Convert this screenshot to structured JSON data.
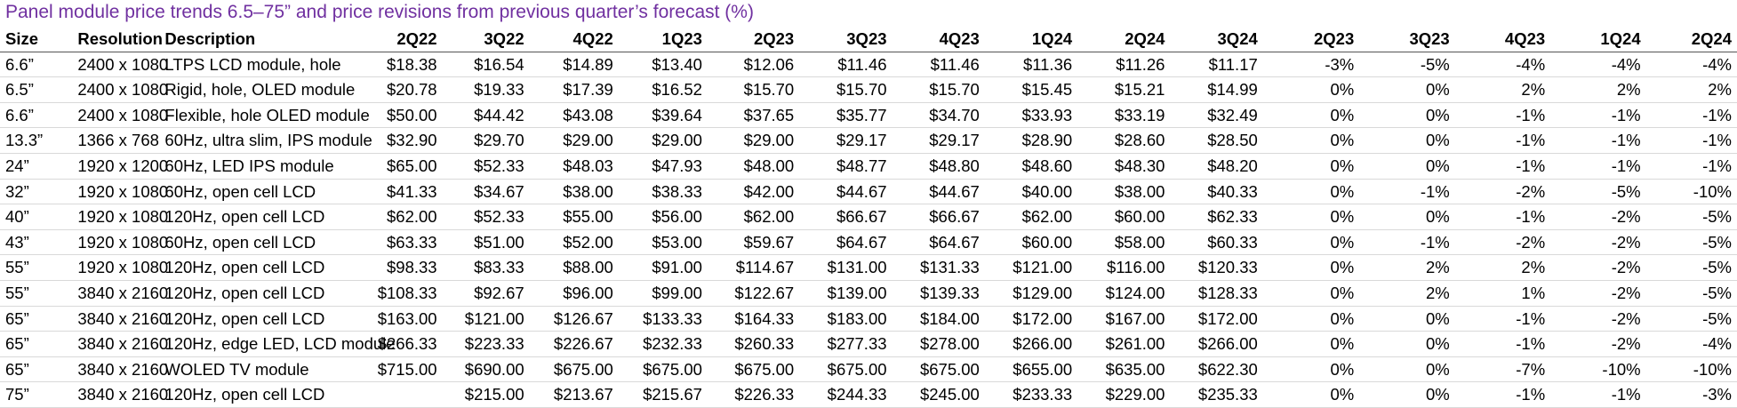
{
  "title": "Panel module price trends 6.5–75” and price revisions from previous quarter’s forecast (%)",
  "columns": [
    "Size",
    "Resolution",
    "Description",
    "2Q22",
    "3Q22",
    "4Q22",
    "1Q23",
    "2Q23",
    "3Q23",
    "4Q23",
    "1Q24",
    "2Q24",
    "3Q24",
    "2Q23",
    "3Q23",
    "4Q23",
    "1Q24",
    "2Q24"
  ],
  "rows": [
    [
      "6.6”",
      "2400 x 1080",
      "LTPS LCD module, hole",
      "$18.38",
      "$16.54",
      "$14.89",
      "$13.40",
      "$12.06",
      "$11.46",
      "$11.46",
      "$11.36",
      "$11.26",
      "$11.17",
      "-3%",
      "-5%",
      "-4%",
      "-4%",
      "-4%"
    ],
    [
      "6.5”",
      "2400 x 1080",
      "Rigid, hole, OLED module",
      "$20.78",
      "$19.33",
      "$17.39",
      "$16.52",
      "$15.70",
      "$15.70",
      "$15.70",
      "$15.45",
      "$15.21",
      "$14.99",
      "0%",
      "0%",
      "2%",
      "2%",
      "2%"
    ],
    [
      "6.6”",
      "2400 x 1080",
      "Flexible, hole OLED module",
      "$50.00",
      "$44.42",
      "$43.08",
      "$39.64",
      "$37.65",
      "$35.77",
      "$34.70",
      "$33.93",
      "$33.19",
      "$32.49",
      "0%",
      "0%",
      "-1%",
      "-1%",
      "-1%"
    ],
    [
      "13.3”",
      "1366 x 768",
      "60Hz, ultra slim, IPS module",
      "$32.90",
      "$29.70",
      "$29.00",
      "$29.00",
      "$29.00",
      "$29.17",
      "$29.17",
      "$28.90",
      "$28.60",
      "$28.50",
      "0%",
      "0%",
      "-1%",
      "-1%",
      "-1%"
    ],
    [
      "24”",
      "1920 x 1200",
      "60Hz, LED IPS module",
      "$65.00",
      "$52.33",
      "$48.03",
      "$47.93",
      "$48.00",
      "$48.77",
      "$48.80",
      "$48.60",
      "$48.30",
      "$48.20",
      "0%",
      "0%",
      "-1%",
      "-1%",
      "-1%"
    ],
    [
      "32”",
      "1920 x 1080",
      "60Hz, open cell LCD",
      "$41.33",
      "$34.67",
      "$38.00",
      "$38.33",
      "$42.00",
      "$44.67",
      "$44.67",
      "$40.00",
      "$38.00",
      "$40.33",
      "0%",
      "-1%",
      "-2%",
      "-5%",
      "-10%"
    ],
    [
      "40”",
      "1920 x 1080",
      "120Hz, open cell LCD",
      "$62.00",
      "$52.33",
      "$55.00",
      "$56.00",
      "$62.00",
      "$66.67",
      "$66.67",
      "$62.00",
      "$60.00",
      "$62.33",
      "0%",
      "0%",
      "-1%",
      "-2%",
      "-5%"
    ],
    [
      "43”",
      "1920 x 1080",
      "60Hz, open cell LCD",
      "$63.33",
      "$51.00",
      "$52.00",
      "$53.00",
      "$59.67",
      "$64.67",
      "$64.67",
      "$60.00",
      "$58.00",
      "$60.33",
      "0%",
      "-1%",
      "-2%",
      "-2%",
      "-5%"
    ],
    [
      "55”",
      "1920 x 1080",
      "120Hz, open cell LCD",
      "$98.33",
      "$83.33",
      "$88.00",
      "$91.00",
      "$114.67",
      "$131.00",
      "$131.33",
      "$121.00",
      "$116.00",
      "$120.33",
      "0%",
      "2%",
      "2%",
      "-2%",
      "-5%"
    ],
    [
      "55”",
      "3840 x 2160",
      "120Hz, open cell LCD",
      "$108.33",
      "$92.67",
      "$96.00",
      "$99.00",
      "$122.67",
      "$139.00",
      "$139.33",
      "$129.00",
      "$124.00",
      "$128.33",
      "0%",
      "2%",
      "1%",
      "-2%",
      "-5%"
    ],
    [
      "65”",
      "3840 x 2160",
      "120Hz, open cell LCD",
      "$163.00",
      "$121.00",
      "$126.67",
      "$133.33",
      "$164.33",
      "$183.00",
      "$184.00",
      "$172.00",
      "$167.00",
      "$172.00",
      "0%",
      "0%",
      "-1%",
      "-2%",
      "-5%"
    ],
    [
      "65”",
      "3840 x 2160",
      "120Hz, edge LED, LCD module",
      "$266.33",
      "$223.33",
      "$226.67",
      "$232.33",
      "$260.33",
      "$277.33",
      "$278.00",
      "$266.00",
      "$261.00",
      "$266.00",
      "0%",
      "0%",
      "-1%",
      "-2%",
      "-4%"
    ],
    [
      "65”",
      "3840 x 2160",
      "WOLED TV module",
      "$715.00",
      "$690.00",
      "$675.00",
      "$675.00",
      "$675.00",
      "$675.00",
      "$675.00",
      "$655.00",
      "$635.00",
      "$622.30",
      "0%",
      "0%",
      "-7%",
      "-10%",
      "-10%"
    ],
    [
      "75”",
      "3840 x 2160",
      "120Hz, open cell LCD",
      "",
      "$215.00",
      "$213.67",
      "$215.67",
      "$226.33",
      "$244.33",
      "$245.00",
      "$233.33",
      "$229.00",
      "$235.33",
      "0%",
      "0%",
      "-1%",
      "-1%",
      "-3%"
    ]
  ]
}
